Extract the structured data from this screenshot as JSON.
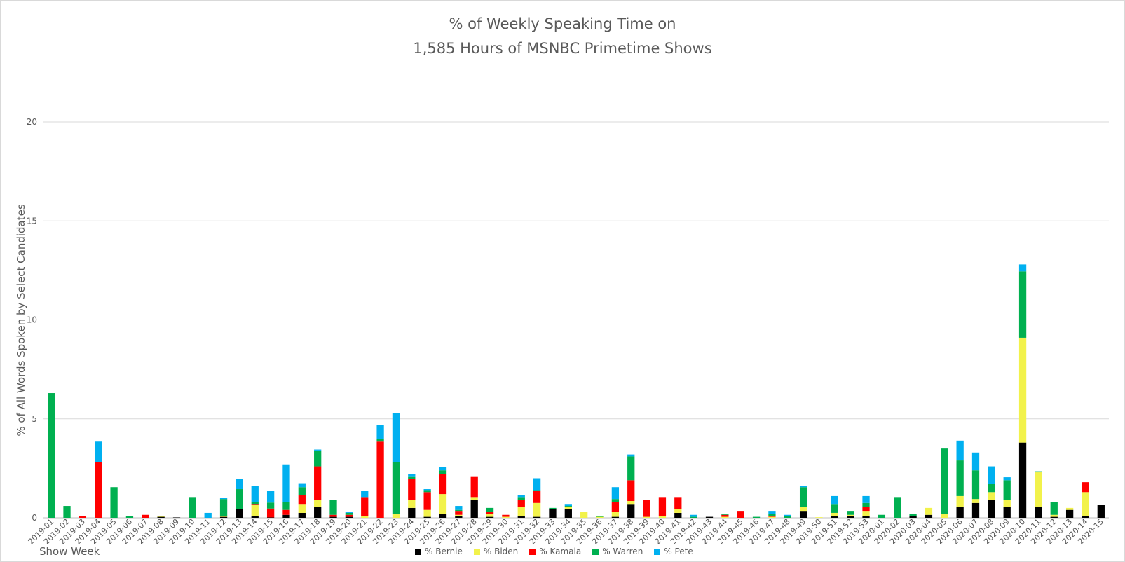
{
  "chart_data": {
    "type": "bar",
    "stacked": true,
    "title": "% of Weekly Speaking Time on",
    "subtitle": "1,585 Hours of MSNBC Primetime Shows",
    "xlabel": "Show Week",
    "ylabel": "% of All Words Spoken by Select Candidates",
    "ylim": [
      0,
      20
    ],
    "yticks": [
      0,
      5,
      10,
      15,
      20
    ],
    "grid": true,
    "legend_position": "bottom",
    "categories": [
      "2019-01",
      "2019-02",
      "2019-03",
      "2019-04",
      "2019-05",
      "2019-06",
      "2019-07",
      "2019-08",
      "2019-09",
      "2019-10",
      "2019-11",
      "2019-12",
      "2019-13",
      "2019-14",
      "2019-15",
      "2019-16",
      "2019-17",
      "2019-18",
      "2019-19",
      "2019-20",
      "2019-21",
      "2019-22",
      "2019-23",
      "2019-24",
      "2019-25",
      "2019-26",
      "2019-27",
      "2019-28",
      "2019-29",
      "2019-30",
      "2019-31",
      "2019-32",
      "2019-33",
      "2019-34",
      "2019-35",
      "2019-36",
      "2019-37",
      "2019-38",
      "2019-39",
      "2019-40",
      "2019-41",
      "2019-42",
      "2019-43",
      "2019-44",
      "2019-45",
      "2019-46",
      "2019-47",
      "2019-48",
      "2019-49",
      "2019-50",
      "2019-51",
      "2019-52",
      "2019-53",
      "2020-01",
      "2020-02",
      "2020-03",
      "2020-04",
      "2020-05",
      "2020-06",
      "2020-07",
      "2020-08",
      "2020-09",
      "2020-10",
      "2020-11",
      "2020-12",
      "2020-13",
      "2020-14",
      "2020-15"
    ],
    "series": [
      {
        "name": "% Bernie",
        "color": "#000000",
        "values": [
          0,
          0,
          0,
          0,
          0,
          0,
          0,
          0.05,
          0.02,
          0,
          0,
          0.05,
          0.45,
          0.1,
          0.02,
          0.15,
          0.25,
          0.55,
          0.05,
          0.05,
          0,
          0,
          0,
          0.5,
          0.05,
          0.2,
          0.1,
          0.9,
          0.05,
          0,
          0.1,
          0.05,
          0.45,
          0.45,
          0,
          0,
          0.05,
          0.7,
          0,
          0,
          0.25,
          0,
          0.05,
          0,
          0,
          0,
          0,
          0,
          0.35,
          0,
          0.1,
          0.1,
          0.1,
          0,
          0,
          0.1,
          0.15,
          0,
          0.55,
          0.75,
          0.9,
          0.55,
          3.8,
          0.55,
          0.05,
          0.4,
          0.1,
          0.65
        ]
      },
      {
        "name": "% Biden",
        "color": "#f2f24b",
        "values": [
          0,
          0,
          0,
          0,
          0,
          0,
          0,
          0.05,
          0,
          0,
          0,
          0.05,
          0,
          0.55,
          0,
          0,
          0.45,
          0.35,
          0,
          0,
          0.1,
          0,
          0.2,
          0.4,
          0.35,
          1.0,
          0.05,
          0.15,
          0.15,
          0.05,
          0.45,
          0.7,
          0,
          0.1,
          0.3,
          0.05,
          0.25,
          0.15,
          0.05,
          0.1,
          0.2,
          0,
          0,
          0.05,
          0,
          0,
          0.05,
          0,
          0.2,
          0.03,
          0.15,
          0.05,
          0.25,
          0,
          0,
          0,
          0.35,
          0.2,
          0.55,
          0.2,
          0.4,
          0.35,
          5.3,
          1.75,
          0.1,
          0.1,
          1.2,
          0
        ]
      },
      {
        "name": "% Kamala",
        "color": "#ff0000",
        "values": [
          0,
          0,
          0.1,
          2.8,
          0,
          0,
          0.15,
          0,
          0,
          0,
          0,
          0,
          0,
          0.05,
          0.45,
          0.25,
          0.45,
          1.7,
          0.1,
          0.1,
          0.95,
          3.85,
          0,
          1.05,
          0.9,
          1.0,
          0.2,
          1.05,
          0.1,
          0.1,
          0.35,
          0.6,
          0,
          0,
          0,
          0,
          0.5,
          1.05,
          0.85,
          0.95,
          0.6,
          0,
          0,
          0.1,
          0.35,
          0,
          0.05,
          0,
          0,
          0,
          0,
          0,
          0.2,
          0,
          0,
          0,
          0,
          0,
          0,
          0,
          0,
          0,
          0,
          0,
          0,
          0,
          0.5,
          0
        ]
      },
      {
        "name": "% Warren",
        "color": "#00b050",
        "values": [
          6.3,
          0.6,
          0,
          0,
          1.55,
          0.1,
          0,
          0,
          0,
          1.05,
          0,
          0.85,
          1.0,
          0.1,
          0.3,
          0.4,
          0.4,
          0.8,
          0.75,
          0.1,
          0,
          0.15,
          2.6,
          0.15,
          0.1,
          0.2,
          0.05,
          0,
          0.2,
          0,
          0.15,
          0.05,
          0.05,
          0.05,
          0,
          0.05,
          0.15,
          1.2,
          0,
          0,
          0,
          0.05,
          0,
          0.05,
          0,
          0.05,
          0.1,
          0.1,
          1.0,
          0,
          0.45,
          0.2,
          0.2,
          0.15,
          1.05,
          0.1,
          0,
          3.3,
          1.8,
          1.45,
          0.4,
          1.0,
          3.35,
          0.05,
          0.65,
          0,
          0,
          0
        ]
      },
      {
        "name": "% Pete",
        "color": "#00b0f0",
        "values": [
          0,
          0,
          0,
          1.05,
          0,
          0,
          0,
          0,
          0,
          0,
          0.25,
          0.05,
          0.5,
          0.8,
          0.6,
          1.9,
          0.2,
          0.05,
          0,
          0.05,
          0.3,
          0.7,
          2.5,
          0.1,
          0.05,
          0.15,
          0.2,
          0,
          0,
          0,
          0.1,
          0.6,
          0,
          0.1,
          0,
          0,
          0.6,
          0.1,
          0,
          0,
          0,
          0.1,
          0,
          0,
          0,
          0,
          0.15,
          0.05,
          0.05,
          0,
          0.4,
          0,
          0.35,
          0,
          0,
          0,
          0,
          0,
          1.0,
          0.9,
          0.9,
          0.15,
          0.35,
          0,
          0,
          0,
          0,
          0
        ]
      }
    ]
  }
}
